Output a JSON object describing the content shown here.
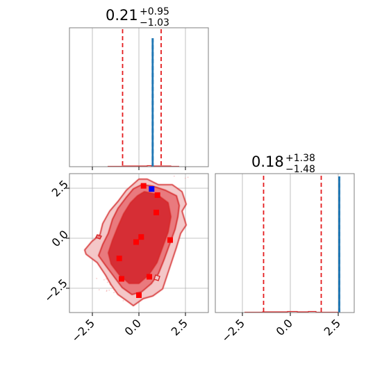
{
  "chart_data": {
    "type": "corner",
    "colors": {
      "samples": "#d62728",
      "contour_fill_outer": "#f4c7c8",
      "contour_fill_mid": "#e97a7e",
      "contour_fill_inner": "#d62f35",
      "quantile_lines": "#e41a1c",
      "truth": "#1f77b4",
      "truth_marker": "#0000ff",
      "markers": "#ff0000",
      "grid": "#b0b0b0"
    },
    "panels": [
      {
        "id": "marginal-param-1",
        "kind": "histogram",
        "title": {
          "median": "0.21",
          "plus": "+0.95",
          "minus": "−1.03"
        },
        "xlim": [
          -3.0,
          3.0
        ],
        "quantiles": [
          -0.82,
          0.21,
          1.16
        ],
        "truth": 0.62,
        "grid": true,
        "xticks_shown": false
      },
      {
        "id": "marginal-param-2",
        "kind": "histogram",
        "title": {
          "median": "0.18",
          "plus": "+1.38",
          "minus": "−1.48"
        },
        "xlim": [
          -3.2,
          2.8
        ],
        "quantiles": [
          -1.3,
          0.18,
          1.56
        ],
        "truth": 2.42,
        "grid": true,
        "xticks": [
          "−2.5",
          "0.0",
          "2.5"
        ]
      },
      {
        "id": "joint-param-1-param-2",
        "kind": "2d-contour",
        "xlim": [
          -3.0,
          3.0
        ],
        "ylim": [
          -3.6,
          3.2
        ],
        "grid": true,
        "xticks": [
          "−2.5",
          "0.0",
          "2.5"
        ],
        "yticks": [
          "2.5",
          "0.0",
          "−2.5"
        ],
        "truth_point": [
          0.55,
          2.45
        ],
        "marker_points": [
          [
            0.2,
            2.6
          ],
          [
            0.8,
            2.15
          ],
          [
            0.75,
            1.3
          ],
          [
            1.35,
            -0.05
          ],
          [
            0.1,
            0.1
          ],
          [
            -0.12,
            -0.15
          ],
          [
            -0.85,
            -0.95
          ],
          [
            -0.75,
            -1.95
          ],
          [
            0.45,
            -1.85
          ],
          [
            0.0,
            -2.75
          ]
        ]
      }
    ]
  }
}
